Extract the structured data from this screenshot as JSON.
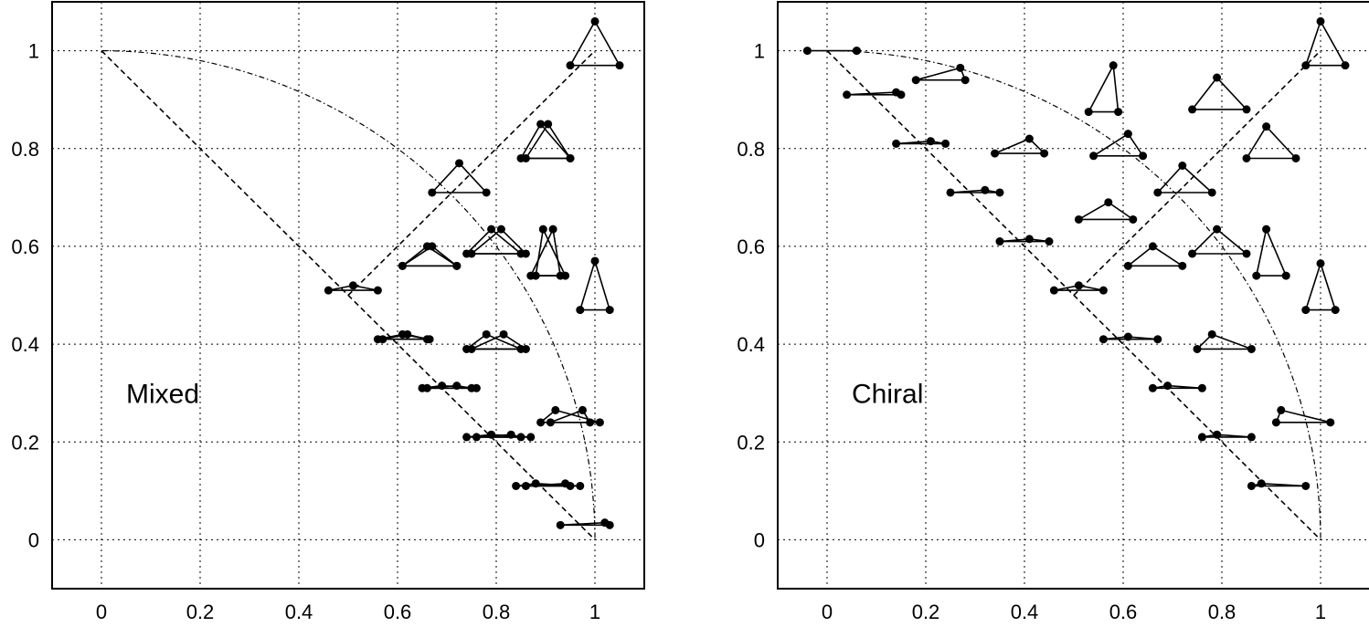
{
  "chart_data": [
    {
      "type": "scatter",
      "panel_label": "Mixed",
      "xlim": [
        -0.1,
        1.1
      ],
      "ylim": [
        -0.1,
        1.1
      ],
      "xticks": [
        0,
        0.2,
        0.4,
        0.6,
        0.8,
        1
      ],
      "yticks": [
        0,
        0.2,
        0.4,
        0.6,
        0.8,
        1
      ],
      "xtick_labels": [
        "0",
        "0.2",
        "0.4",
        "0.6",
        "0.8",
        "1"
      ],
      "ytick_labels": [
        "0",
        "0.2",
        "0.4",
        "0.6",
        "0.8",
        "1"
      ],
      "grid": true,
      "guides": [
        {
          "kind": "line",
          "points": [
            [
              0,
              1
            ],
            [
              1,
              0
            ]
          ]
        },
        {
          "kind": "line",
          "points": [
            [
              0.5,
              0.5
            ],
            [
              1,
              1
            ]
          ]
        },
        {
          "kind": "arc",
          "center": [
            0,
            0
          ],
          "radius": 1
        }
      ],
      "triangles": [
        [
          [
            0.95,
            0.97
          ],
          [
            1.0,
            1.06
          ],
          [
            1.05,
            0.97
          ]
        ],
        [
          [
            0.85,
            0.78
          ],
          [
            0.89,
            0.85
          ],
          [
            0.95,
            0.78
          ]
        ],
        [
          [
            0.86,
            0.78
          ],
          [
            0.905,
            0.85
          ],
          [
            0.95,
            0.78
          ]
        ],
        [
          [
            0.67,
            0.71
          ],
          [
            0.725,
            0.77
          ],
          [
            0.78,
            0.71
          ]
        ],
        [
          [
            0.61,
            0.56
          ],
          [
            0.66,
            0.6
          ],
          [
            0.72,
            0.56
          ]
        ],
        [
          [
            0.61,
            0.56
          ],
          [
            0.67,
            0.6
          ],
          [
            0.72,
            0.56
          ]
        ],
        [
          [
            0.74,
            0.585
          ],
          [
            0.79,
            0.635
          ],
          [
            0.85,
            0.585
          ]
        ],
        [
          [
            0.75,
            0.585
          ],
          [
            0.81,
            0.635
          ],
          [
            0.86,
            0.585
          ]
        ],
        [
          [
            0.88,
            0.54
          ],
          [
            0.895,
            0.635
          ],
          [
            0.94,
            0.54
          ]
        ],
        [
          [
            0.87,
            0.54
          ],
          [
            0.915,
            0.635
          ],
          [
            0.93,
            0.54
          ]
        ],
        [
          [
            0.97,
            0.47
          ],
          [
            1.0,
            0.57
          ],
          [
            1.03,
            0.47
          ]
        ],
        [
          [
            0.46,
            0.51
          ],
          [
            0.51,
            0.52
          ],
          [
            0.56,
            0.51
          ]
        ],
        [
          [
            0.56,
            0.41
          ],
          [
            0.61,
            0.42
          ],
          [
            0.665,
            0.41
          ]
        ],
        [
          [
            0.57,
            0.41
          ],
          [
            0.62,
            0.42
          ],
          [
            0.66,
            0.41
          ]
        ],
        [
          [
            0.74,
            0.39
          ],
          [
            0.78,
            0.42
          ],
          [
            0.85,
            0.39
          ]
        ],
        [
          [
            0.75,
            0.39
          ],
          [
            0.815,
            0.42
          ],
          [
            0.86,
            0.39
          ]
        ],
        [
          [
            0.65,
            0.31
          ],
          [
            0.69,
            0.315
          ],
          [
            0.76,
            0.31
          ]
        ],
        [
          [
            0.66,
            0.31
          ],
          [
            0.72,
            0.315
          ],
          [
            0.75,
            0.31
          ]
        ],
        [
          [
            0.89,
            0.24
          ],
          [
            0.92,
            0.265
          ],
          [
            1.01,
            0.24
          ]
        ],
        [
          [
            0.91,
            0.24
          ],
          [
            0.975,
            0.265
          ],
          [
            0.99,
            0.24
          ]
        ],
        [
          [
            0.74,
            0.21
          ],
          [
            0.79,
            0.215
          ],
          [
            0.87,
            0.21
          ]
        ],
        [
          [
            0.76,
            0.21
          ],
          [
            0.83,
            0.215
          ],
          [
            0.85,
            0.21
          ]
        ],
        [
          [
            0.84,
            0.11
          ],
          [
            0.88,
            0.115
          ],
          [
            0.97,
            0.11
          ]
        ],
        [
          [
            0.86,
            0.11
          ],
          [
            0.94,
            0.115
          ],
          [
            0.95,
            0.11
          ]
        ],
        [
          [
            0.93,
            0.03
          ],
          [
            1.02,
            0.035
          ],
          [
            1.03,
            0.03
          ]
        ]
      ]
    },
    {
      "type": "scatter",
      "panel_label": "Chiral",
      "xlim": [
        -0.1,
        1.1
      ],
      "ylim": [
        -0.1,
        1.1
      ],
      "xticks": [
        0,
        0.2,
        0.4,
        0.6,
        0.8,
        1
      ],
      "yticks": [
        0,
        0.2,
        0.4,
        0.6,
        0.8,
        1
      ],
      "xtick_labels": [
        "0",
        "0.2",
        "0.4",
        "0.6",
        "0.8",
        "1"
      ],
      "ytick_labels": [
        "0",
        "0.2",
        "0.4",
        "0.6",
        "0.8",
        "1"
      ],
      "grid": true,
      "guides": [
        {
          "kind": "line",
          "points": [
            [
              0,
              1
            ],
            [
              1,
              0
            ]
          ]
        },
        {
          "kind": "line",
          "points": [
            [
              0.5,
              0.5
            ],
            [
              1,
              1
            ]
          ]
        },
        {
          "kind": "arc",
          "center": [
            0,
            0
          ],
          "radius": 1
        }
      ],
      "triangles": [
        [
          [
            -0.04,
            1.0
          ],
          [
            0.06,
            1.0
          ],
          [
            0.06,
            1.0
          ]
        ],
        [
          [
            0.04,
            0.91
          ],
          [
            0.14,
            0.915
          ],
          [
            0.15,
            0.91
          ]
        ],
        [
          [
            0.18,
            0.94
          ],
          [
            0.27,
            0.965
          ],
          [
            0.28,
            0.94
          ]
        ],
        [
          [
            0.14,
            0.81
          ],
          [
            0.21,
            0.815
          ],
          [
            0.24,
            0.81
          ]
        ],
        [
          [
            0.34,
            0.79
          ],
          [
            0.41,
            0.82
          ],
          [
            0.44,
            0.79
          ]
        ],
        [
          [
            0.25,
            0.71
          ],
          [
            0.32,
            0.715
          ],
          [
            0.35,
            0.71
          ]
        ],
        [
          [
            0.35,
            0.61
          ],
          [
            0.41,
            0.615
          ],
          [
            0.45,
            0.61
          ]
        ],
        [
          [
            0.53,
            0.875
          ],
          [
            0.58,
            0.97
          ],
          [
            0.59,
            0.875
          ]
        ],
        [
          [
            0.74,
            0.88
          ],
          [
            0.79,
            0.945
          ],
          [
            0.85,
            0.88
          ]
        ],
        [
          [
            0.54,
            0.785
          ],
          [
            0.61,
            0.83
          ],
          [
            0.64,
            0.785
          ]
        ],
        [
          [
            0.51,
            0.655
          ],
          [
            0.57,
            0.69
          ],
          [
            0.62,
            0.655
          ]
        ],
        [
          [
            0.67,
            0.71
          ],
          [
            0.72,
            0.765
          ],
          [
            0.78,
            0.71
          ]
        ],
        [
          [
            0.85,
            0.78
          ],
          [
            0.89,
            0.845
          ],
          [
            0.95,
            0.78
          ]
        ],
        [
          [
            0.97,
            0.97
          ],
          [
            1.0,
            1.06
          ],
          [
            1.05,
            0.97
          ]
        ],
        [
          [
            0.46,
            0.51
          ],
          [
            0.51,
            0.52
          ],
          [
            0.56,
            0.51
          ]
        ],
        [
          [
            0.61,
            0.56
          ],
          [
            0.66,
            0.6
          ],
          [
            0.72,
            0.56
          ]
        ],
        [
          [
            0.74,
            0.585
          ],
          [
            0.79,
            0.635
          ],
          [
            0.85,
            0.585
          ]
        ],
        [
          [
            0.87,
            0.54
          ],
          [
            0.89,
            0.635
          ],
          [
            0.93,
            0.54
          ]
        ],
        [
          [
            0.97,
            0.47
          ],
          [
            1.0,
            0.565
          ],
          [
            1.03,
            0.47
          ]
        ],
        [
          [
            0.56,
            0.41
          ],
          [
            0.61,
            0.415
          ],
          [
            0.67,
            0.41
          ]
        ],
        [
          [
            0.75,
            0.39
          ],
          [
            0.78,
            0.42
          ],
          [
            0.86,
            0.39
          ]
        ],
        [
          [
            0.66,
            0.31
          ],
          [
            0.69,
            0.315
          ],
          [
            0.76,
            0.31
          ]
        ],
        [
          [
            0.76,
            0.21
          ],
          [
            0.79,
            0.215
          ],
          [
            0.86,
            0.21
          ]
        ],
        [
          [
            0.91,
            0.24
          ],
          [
            0.92,
            0.265
          ],
          [
            1.02,
            0.24
          ]
        ],
        [
          [
            0.86,
            0.11
          ],
          [
            0.88,
            0.115
          ],
          [
            0.97,
            0.11
          ]
        ]
      ]
    }
  ]
}
